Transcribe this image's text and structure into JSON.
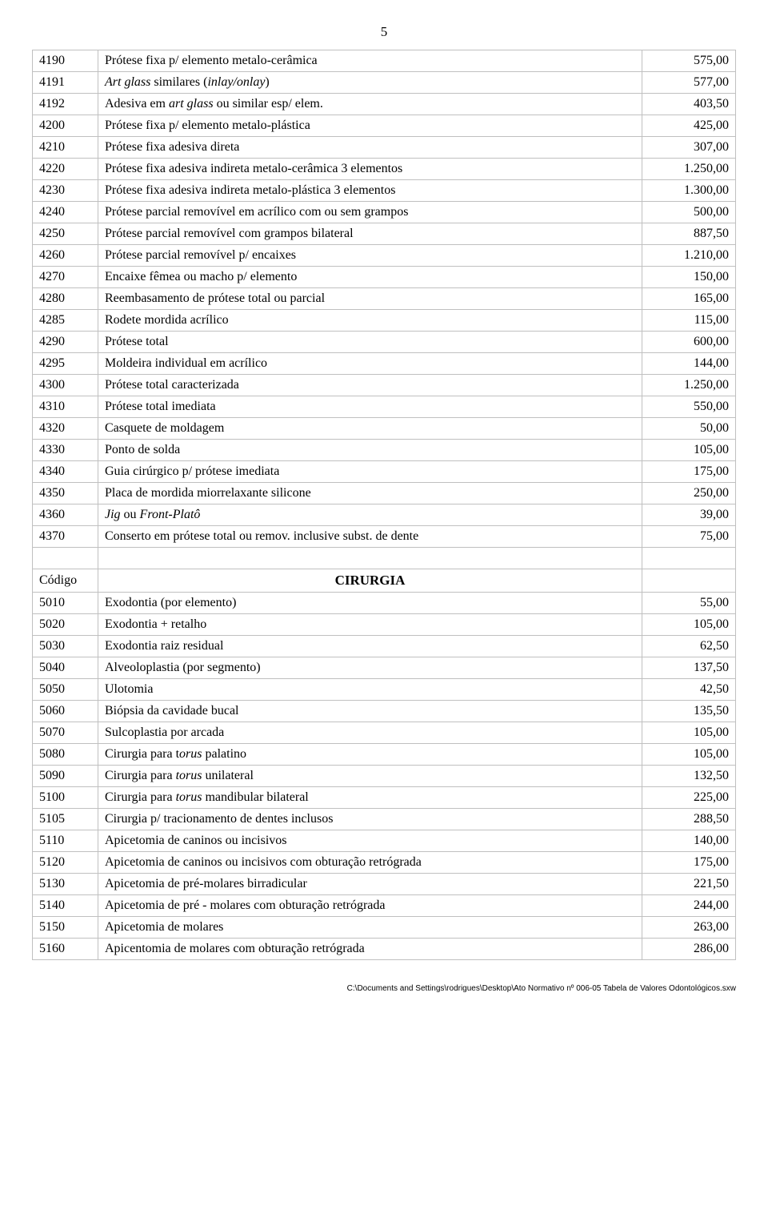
{
  "pageNumber": "5",
  "rows": [
    {
      "code": "4190",
      "desc": "Prótese fixa p/ elemento metalo-cerâmica",
      "val": "575,00"
    },
    {
      "code": "4191",
      "desc_html": "<i>Art glass</i> similares (<i>inlay/onlay</i>)",
      "val": "577,00"
    },
    {
      "code": "4192",
      "desc_html": "Adesiva em <i>art glass</i> ou similar esp/ elem.",
      "val": "403,50"
    },
    {
      "code": "4200",
      "desc": "Prótese fixa p/ elemento metalo-plástica",
      "val": "425,00"
    },
    {
      "code": "4210",
      "desc": "Prótese fixa adesiva direta",
      "val": "307,00"
    },
    {
      "code": "4220",
      "desc": "Prótese fixa adesiva indireta metalo-cerâmica 3 elementos",
      "val": "1.250,00"
    },
    {
      "code": "4230",
      "desc": "Prótese fixa adesiva indireta metalo-plástica 3 elementos",
      "val": "1.300,00"
    },
    {
      "code": "4240",
      "desc": "Prótese parcial removível em acrílico com ou sem grampos",
      "val": "500,00"
    },
    {
      "code": "4250",
      "desc": "Prótese parcial removível  com  grampos bilateral",
      "val": "887,50"
    },
    {
      "code": "4260",
      "desc": "Prótese parcial removível p/ encaixes",
      "val": "1.210,00"
    },
    {
      "code": "4270",
      "desc": "Encaixe fêmea ou macho p/ elemento",
      "val": "150,00"
    },
    {
      "code": "4280",
      "desc": "Reembasamento de prótese total ou parcial",
      "val": "165,00"
    },
    {
      "code": "4285",
      "desc": "Rodete mordida acrílico",
      "val": "115,00"
    },
    {
      "code": "4290",
      "desc": "Prótese total",
      "val": "600,00"
    },
    {
      "code": "4295",
      "desc": "Moldeira individual em acrílico",
      "val": "144,00"
    },
    {
      "code": "4300",
      "desc": "Prótese total caracterizada",
      "val": "1.250,00"
    },
    {
      "code": "4310",
      "desc": "Prótese total imediata",
      "val": "550,00"
    },
    {
      "code": "4320",
      "desc": "Casquete de moldagem",
      "val": "50,00"
    },
    {
      "code": "4330",
      "desc": "Ponto de solda",
      "val": "105,00"
    },
    {
      "code": "4340",
      "desc": "Guia cirúrgico p/ prótese imediata",
      "val": "175,00"
    },
    {
      "code": "4350",
      "desc": "Placa de mordida miorrelaxante silicone",
      "val": "250,00"
    },
    {
      "code": "4360",
      "desc_html": "<i>Jig</i> ou <i>Front-Platô</i>",
      "val": "39,00"
    },
    {
      "code": "4370",
      "desc": "Conserto em prótese total ou remov. inclusive subst. de dente",
      "val": "75,00"
    }
  ],
  "section": {
    "codeLabel": "Código",
    "title": "CIRURGIA"
  },
  "rows2": [
    {
      "code": "5010",
      "desc": "Exodontia (por elemento)",
      "val": "55,00"
    },
    {
      "code": "5020",
      "desc": "Exodontia + retalho",
      "val": "105,00"
    },
    {
      "code": "5030",
      "desc": "Exodontia raiz residual",
      "val": "62,50"
    },
    {
      "code": "5040",
      "desc": "Alveoloplastia (por segmento)",
      "val": "137,50"
    },
    {
      "code": "5050",
      "desc": "Ulotomia",
      "val": "42,50"
    },
    {
      "code": "5060",
      "desc": "Biópsia da cavidade bucal",
      "val": "135,50"
    },
    {
      "code": "5070",
      "desc": "Sulcoplastia por arcada",
      "val": "105,00"
    },
    {
      "code": "5080",
      "desc_html": "Cirurgia para t<i>orus</i> palatino",
      "val": "105,00"
    },
    {
      "code": "5090",
      "desc_html": "Cirurgia para <i>torus</i> unilateral",
      "val": "132,50"
    },
    {
      "code": "5100",
      "desc_html": "Cirurgia para <i>torus</i> mandibular bilateral",
      "val": "225,00"
    },
    {
      "code": "5105",
      "desc": "Cirurgia p/ tracionamento de dentes inclusos",
      "val": "288,50"
    },
    {
      "code": "5110",
      "desc": "Apicetomia de caninos ou incisivos",
      "val": "140,00"
    },
    {
      "code": "5120",
      "desc": "Apicetomia de caninos ou incisivos com obturação retrógrada",
      "val": "175,00"
    },
    {
      "code": "5130",
      "desc": "Apicetomia de pré-molares birradicular",
      "val": "221,50"
    },
    {
      "code": "5140",
      "desc": "Apicetomia de pré - molares com obturação retrógrada",
      "val": "244,00"
    },
    {
      "code": "5150",
      "desc": "Apicetomia de molares",
      "val": "263,00"
    },
    {
      "code": "5160",
      "desc": "Apicentomia de molares com obturação retrógrada",
      "val": "286,00"
    }
  ],
  "footer": "C:\\Documents and Settings\\rodrigues\\Desktop\\Ato Normativo nº 006-05 Tabela de Valores Odontológicos.sxw"
}
